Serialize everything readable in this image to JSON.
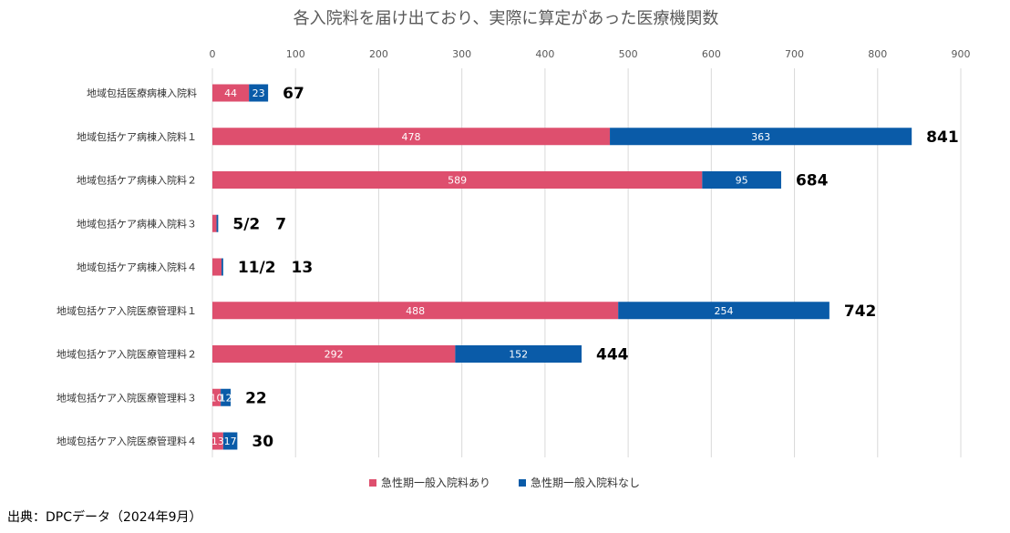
{
  "chart_data": {
    "type": "bar",
    "orientation": "horizontal",
    "stacked": true,
    "title": "各入院料を届け出ており、実際に算定があった医療機関数",
    "categories": [
      "地域包括医療病棟入院料",
      "地域包括ケア病棟入院料１",
      "地域包括ケア病棟入院料２",
      "地域包括ケア病棟入院料３",
      "地域包括ケア病棟入院料４",
      "地域包括ケア入院医療管理料１",
      "地域包括ケア入院医療管理料２",
      "地域包括ケア入院医療管理料３",
      "地域包括ケア入院医療管理料４"
    ],
    "series": [
      {
        "name": "急性期一般入院料あり",
        "color": "#de4f6e",
        "values": [
          44,
          478,
          589,
          5,
          11,
          488,
          292,
          10,
          13
        ]
      },
      {
        "name": "急性期一般入院料なし",
        "color": "#0a5ba8",
        "values": [
          23,
          363,
          95,
          2,
          2,
          254,
          152,
          12,
          17
        ]
      }
    ],
    "segment_labels": [
      [
        "44",
        "23"
      ],
      [
        "478",
        "363"
      ],
      [
        "589",
        "95"
      ],
      [
        "",
        ""
      ],
      [
        "",
        ""
      ],
      [
        "488",
        "254"
      ],
      [
        "292",
        "152"
      ],
      [
        "10",
        "12"
      ],
      [
        "13",
        "17"
      ]
    ],
    "total_labels": [
      "67",
      "841",
      "684",
      "5/2　7",
      "11/2　13",
      "742",
      "444",
      "22",
      "30"
    ],
    "xlim": [
      0,
      900
    ],
    "xticks": [
      "0",
      "100",
      "200",
      "300",
      "400",
      "500",
      "600",
      "700",
      "800",
      "900"
    ],
    "grid": true,
    "legend_position": "bottom"
  },
  "source_text": "出典：DPCデータ（2024年9月）"
}
